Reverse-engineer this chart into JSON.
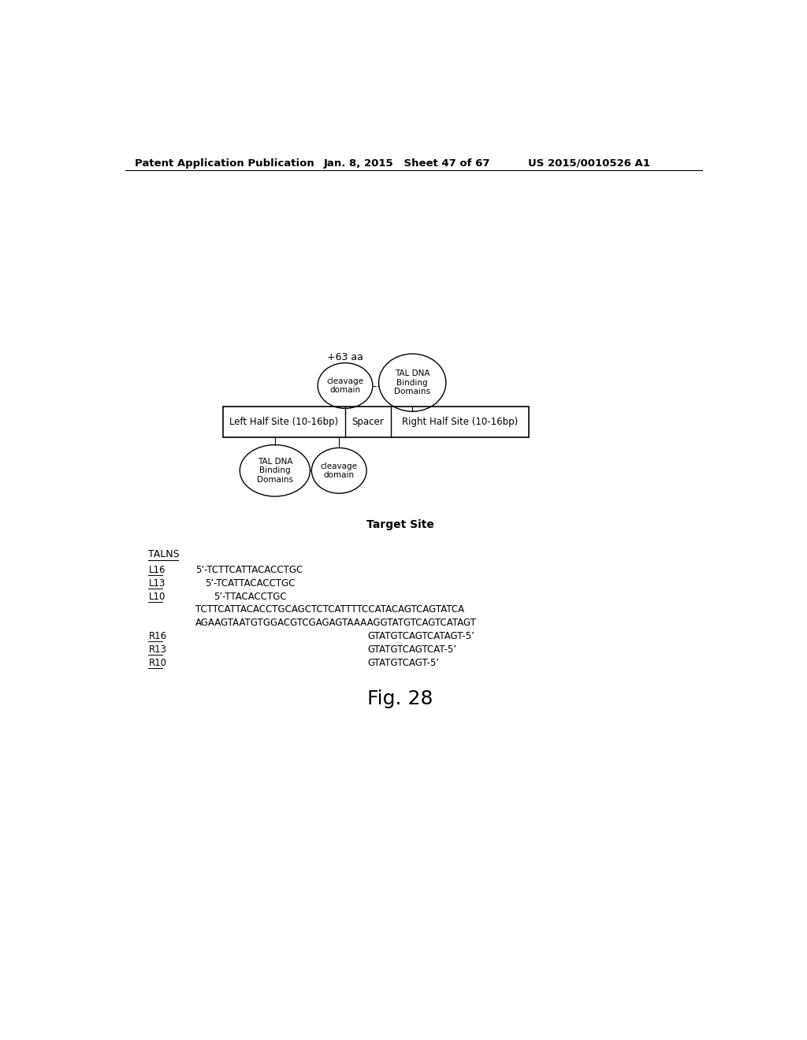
{
  "header_left": "Patent Application Publication",
  "header_mid": "Jan. 8, 2015   Sheet 47 of 67",
  "header_right": "US 2015/0010526 A1",
  "plus63_label": "+63 aa",
  "cleavage_top_label": "cleavage\ndomain",
  "tal_dna_top_label": "TAL DNA\nBinding\nDomains",
  "box_left_label": "Left Half Site (10-16bp)",
  "box_spacer_label": "Spacer",
  "box_right_label": "Right Half Site (10-16bp)",
  "tal_dna_bot_label": "TAL DNA\nBinding\nDomains",
  "cleavage_bot_label": "cleavage\ndomain",
  "target_site_label": "Target Site",
  "talns_label": "TALNS",
  "fig_label": "Fig. 28",
  "background_color": "#ffffff"
}
